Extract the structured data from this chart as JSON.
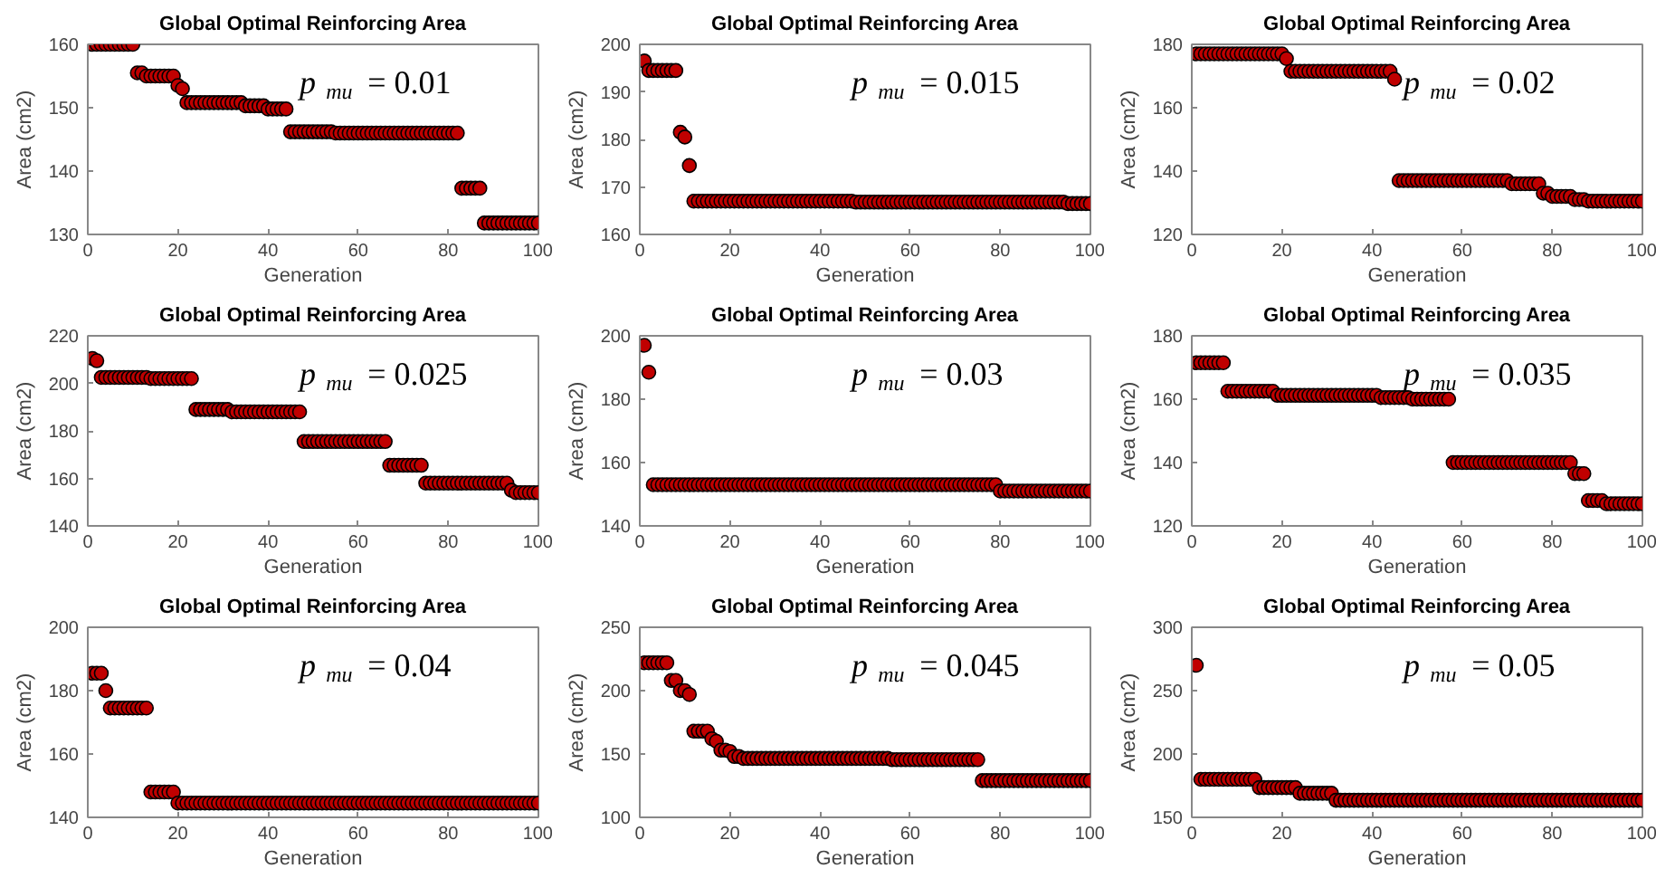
{
  "chart_data": [
    {
      "type": "scatter",
      "title": "Global Optimal Reinforcing Area",
      "xlabel": "Generation",
      "ylabel": "Area (cm2)",
      "annotations": [
        "p$_{mu}$ = 0.01"
      ],
      "marker": "circle",
      "xlim": [
        0,
        100
      ],
      "xticks": [
        0,
        20,
        40,
        60,
        80,
        100
      ],
      "ylim": [
        130,
        160
      ],
      "yticks": [
        130,
        140,
        150,
        160
      ],
      "series": [
        {
          "color": "#c00000",
          "x": [
            1,
            2,
            3,
            4,
            5,
            6,
            7,
            8,
            9,
            10,
            11,
            12,
            13,
            14,
            15,
            16,
            17,
            18,
            19,
            20,
            21,
            22,
            23,
            24,
            25,
            26,
            27,
            28,
            29,
            30,
            31,
            32,
            33,
            34,
            35,
            36,
            37,
            38,
            39,
            40,
            41,
            42,
            43,
            44,
            45,
            46,
            47,
            48,
            49,
            50,
            51,
            52,
            53,
            54,
            55,
            56,
            57,
            58,
            59,
            60,
            61,
            62,
            63,
            64,
            65,
            66,
            67,
            68,
            69,
            70,
            71,
            72,
            73,
            74,
            75,
            76,
            77,
            78,
            79,
            80,
            81,
            82,
            83,
            84,
            85,
            86,
            87,
            88,
            89,
            90,
            91,
            92,
            93,
            94,
            95,
            96,
            97,
            98,
            99,
            100
          ],
          "values": [
            160,
            160,
            160,
            160,
            160,
            160,
            160,
            160,
            160,
            160,
            155.5,
            155.5,
            155,
            155,
            155,
            155,
            155,
            155,
            155,
            153.5,
            153,
            150.8,
            150.8,
            150.8,
            150.8,
            150.8,
            150.8,
            150.8,
            150.8,
            150.8,
            150.8,
            150.8,
            150.8,
            150.8,
            150.3,
            150.3,
            150.3,
            150.3,
            150.3,
            149.8,
            149.8,
            149.8,
            149.8,
            149.8,
            146.2,
            146.2,
            146.2,
            146.2,
            146.2,
            146.2,
            146.2,
            146.2,
            146.2,
            146.2,
            146,
            146,
            146,
            146,
            146,
            146,
            146,
            146,
            146,
            146,
            146,
            146,
            146,
            146,
            146,
            146,
            146,
            146,
            146,
            146,
            146,
            146,
            146,
            146,
            146,
            146,
            146,
            146,
            137.3,
            137.3,
            137.3,
            137.3,
            137.3,
            131.8,
            131.8,
            131.8,
            131.8,
            131.8,
            131.8,
            131.8,
            131.8,
            131.8,
            131.8,
            131.8,
            131.8,
            131.8
          ]
        }
      ]
    },
    {
      "type": "scatter",
      "title": "Global Optimal Reinforcing Area",
      "xlabel": "Generation",
      "ylabel": "Area (cm2)",
      "annotations": [
        "p$_{mu}$ = 0.015"
      ],
      "marker": "circle",
      "xlim": [
        0,
        100
      ],
      "xticks": [
        0,
        20,
        40,
        60,
        80,
        100
      ],
      "ylim": [
        160,
        200
      ],
      "yticks": [
        160,
        170,
        180,
        190,
        200
      ],
      "series": [
        {
          "color": "#c00000",
          "x": [
            1,
            2,
            3,
            4,
            5,
            6,
            7,
            8,
            9,
            10,
            11,
            12,
            13,
            14,
            15,
            16,
            17,
            18,
            19,
            20,
            21,
            22,
            23,
            24,
            25,
            26,
            27,
            28,
            29,
            30,
            31,
            32,
            33,
            34,
            35,
            36,
            37,
            38,
            39,
            40,
            41,
            42,
            43,
            44,
            45,
            46,
            47,
            48,
            49,
            50,
            51,
            52,
            53,
            54,
            55,
            56,
            57,
            58,
            59,
            60,
            61,
            62,
            63,
            64,
            65,
            66,
            67,
            68,
            69,
            70,
            71,
            72,
            73,
            74,
            75,
            76,
            77,
            78,
            79,
            80,
            81,
            82,
            83,
            84,
            85,
            86,
            87,
            88,
            89,
            90,
            91,
            92,
            93,
            94,
            95,
            96,
            97,
            98,
            99,
            100
          ],
          "values": [
            196.5,
            194.5,
            194.5,
            194.5,
            194.5,
            194.5,
            194.5,
            194.5,
            181.5,
            180.5,
            174.5,
            167,
            167,
            167,
            167,
            167,
            167,
            167,
            167,
            167,
            167,
            167,
            167,
            167,
            167,
            167,
            167,
            167,
            167,
            167,
            167,
            167,
            167,
            167,
            167,
            167,
            167,
            167,
            167,
            167,
            167,
            167,
            167,
            167,
            167,
            167,
            167,
            166.8,
            166.8,
            166.8,
            166.8,
            166.8,
            166.8,
            166.8,
            166.8,
            166.8,
            166.8,
            166.8,
            166.8,
            166.8,
            166.8,
            166.8,
            166.8,
            166.8,
            166.8,
            166.8,
            166.8,
            166.8,
            166.8,
            166.8,
            166.8,
            166.8,
            166.8,
            166.8,
            166.8,
            166.8,
            166.8,
            166.8,
            166.8,
            166.8,
            166.8,
            166.8,
            166.8,
            166.8,
            166.8,
            166.8,
            166.8,
            166.8,
            166.8,
            166.8,
            166.8,
            166.8,
            166.8,
            166.8,
            166.5,
            166.5,
            166.5,
            166.5,
            166.5,
            166.5
          ]
        }
      ]
    },
    {
      "type": "scatter",
      "title": "Global Optimal Reinforcing Area",
      "xlabel": "Generation",
      "ylabel": "Area (cm2)",
      "annotations": [
        "p$_{mu}$ = 0.02"
      ],
      "marker": "circle",
      "xlim": [
        0,
        100
      ],
      "xticks": [
        0,
        20,
        40,
        60,
        80,
        100
      ],
      "ylim": [
        120,
        180
      ],
      "yticks": [
        120,
        140,
        160,
        180
      ],
      "series": [
        {
          "color": "#c00000",
          "x": [
            1,
            2,
            3,
            4,
            5,
            6,
            7,
            8,
            9,
            10,
            11,
            12,
            13,
            14,
            15,
            16,
            17,
            18,
            19,
            20,
            21,
            22,
            23,
            24,
            25,
            26,
            27,
            28,
            29,
            30,
            31,
            32,
            33,
            34,
            35,
            36,
            37,
            38,
            39,
            40,
            41,
            42,
            43,
            44,
            45,
            46,
            47,
            48,
            49,
            50,
            51,
            52,
            53,
            54,
            55,
            56,
            57,
            58,
            59,
            60,
            61,
            62,
            63,
            64,
            65,
            66,
            67,
            68,
            69,
            70,
            71,
            72,
            73,
            74,
            75,
            76,
            77,
            78,
            79,
            80,
            81,
            82,
            83,
            84,
            85,
            86,
            87,
            88,
            89,
            90,
            91,
            92,
            93,
            94,
            95,
            96,
            97,
            98,
            99,
            100
          ],
          "values": [
            177,
            177,
            177,
            177,
            177,
            177,
            177,
            177,
            177,
            177,
            177,
            177,
            177,
            177,
            177,
            177,
            177,
            177,
            177,
            177,
            175.5,
            171.5,
            171.5,
            171.5,
            171.5,
            171.5,
            171.5,
            171.5,
            171.5,
            171.5,
            171.5,
            171.5,
            171.5,
            171.5,
            171.5,
            171.5,
            171.5,
            171.5,
            171.5,
            171.5,
            171.5,
            171.5,
            171.5,
            171.5,
            169,
            137,
            137,
            137,
            137,
            137,
            137,
            137,
            137,
            137,
            137,
            137,
            137,
            137,
            137,
            137,
            137,
            137,
            137,
            137,
            137,
            137,
            137,
            137,
            137,
            137,
            136,
            136,
            136,
            136,
            136,
            136,
            136,
            133,
            133,
            132,
            132,
            132,
            132,
            132,
            131,
            131,
            131,
            130.5,
            130.5,
            130.5,
            130.5,
            130.5,
            130.5,
            130.5,
            130.5,
            130.5,
            130.5,
            130.5,
            130.5,
            130.5
          ]
        }
      ]
    },
    {
      "type": "scatter",
      "title": "Global Optimal Reinforcing Area",
      "xlabel": "Generation",
      "ylabel": "Area (cm2)",
      "annotations": [
        "p$_{mu}$ = 0.025"
      ],
      "marker": "circle",
      "xlim": [
        0,
        100
      ],
      "xticks": [
        0,
        20,
        40,
        60,
        80,
        100
      ],
      "ylim": [
        140,
        220
      ],
      "yticks": [
        140,
        160,
        180,
        200,
        220
      ],
      "series": [
        {
          "color": "#c00000",
          "x": [
            1,
            2,
            3,
            4,
            5,
            6,
            7,
            8,
            9,
            10,
            11,
            12,
            13,
            14,
            15,
            16,
            17,
            18,
            19,
            20,
            21,
            22,
            23,
            24,
            25,
            26,
            27,
            28,
            29,
            30,
            31,
            32,
            33,
            34,
            35,
            36,
            37,
            38,
            39,
            40,
            41,
            42,
            43,
            44,
            45,
            46,
            47,
            48,
            49,
            50,
            51,
            52,
            53,
            54,
            55,
            56,
            57,
            58,
            59,
            60,
            61,
            62,
            63,
            64,
            65,
            66,
            67,
            68,
            69,
            70,
            71,
            72,
            73,
            74,
            75,
            76,
            77,
            78,
            79,
            80,
            81,
            82,
            83,
            84,
            85,
            86,
            87,
            88,
            89,
            90,
            91,
            92,
            93,
            94,
            95,
            96,
            97,
            98,
            99,
            100
          ],
          "values": [
            210.5,
            209.5,
            202.5,
            202.5,
            202.5,
            202.5,
            202.5,
            202.5,
            202.5,
            202.5,
            202.5,
            202.5,
            202.5,
            202,
            202,
            202,
            202,
            202,
            202,
            202,
            202,
            202,
            202,
            189,
            189,
            189,
            189,
            189,
            189,
            189,
            189,
            188,
            188,
            188,
            188,
            188,
            188,
            188,
            188,
            188,
            188,
            188,
            188,
            188,
            188,
            188,
            188,
            175.5,
            175.5,
            175.5,
            175.5,
            175.5,
            175.5,
            175.5,
            175.5,
            175.5,
            175.5,
            175.5,
            175.5,
            175.5,
            175.5,
            175.5,
            175.5,
            175.5,
            175.5,
            175.5,
            165.5,
            165.5,
            165.5,
            165.5,
            165.5,
            165.5,
            165.5,
            165.5,
            158,
            158,
            158,
            158,
            158,
            158,
            158,
            158,
            158,
            158,
            158,
            158,
            158,
            158,
            158,
            158,
            158,
            158,
            158,
            155,
            154,
            154,
            154,
            154,
            154,
            154
          ]
        }
      ]
    },
    {
      "type": "scatter",
      "title": "Global Optimal Reinforcing Area",
      "xlabel": "Generation",
      "ylabel": "Area (cm2)",
      "annotations": [
        "p$_{mu}$ = 0.03"
      ],
      "marker": "circle",
      "xlim": [
        0,
        100
      ],
      "xticks": [
        0,
        20,
        40,
        60,
        80,
        100
      ],
      "ylim": [
        140,
        200
      ],
      "yticks": [
        140,
        160,
        180,
        200
      ],
      "series": [
        {
          "color": "#c00000",
          "x": [
            1,
            2,
            3,
            4,
            5,
            6,
            7,
            8,
            9,
            10,
            11,
            12,
            13,
            14,
            15,
            16,
            17,
            18,
            19,
            20,
            21,
            22,
            23,
            24,
            25,
            26,
            27,
            28,
            29,
            30,
            31,
            32,
            33,
            34,
            35,
            36,
            37,
            38,
            39,
            40,
            41,
            42,
            43,
            44,
            45,
            46,
            47,
            48,
            49,
            50,
            51,
            52,
            53,
            54,
            55,
            56,
            57,
            58,
            59,
            60,
            61,
            62,
            63,
            64,
            65,
            66,
            67,
            68,
            69,
            70,
            71,
            72,
            73,
            74,
            75,
            76,
            77,
            78,
            79,
            80,
            81,
            82,
            83,
            84,
            85,
            86,
            87,
            88,
            89,
            90,
            91,
            92,
            93,
            94,
            95,
            96,
            97,
            98,
            99,
            100
          ],
          "values": [
            197,
            188.5,
            153,
            153,
            153,
            153,
            153,
            153,
            153,
            153,
            153,
            153,
            153,
            153,
            153,
            153,
            153,
            153,
            153,
            153,
            153,
            153,
            153,
            153,
            153,
            153,
            153,
            153,
            153,
            153,
            153,
            153,
            153,
            153,
            153,
            153,
            153,
            153,
            153,
            153,
            153,
            153,
            153,
            153,
            153,
            153,
            153,
            153,
            153,
            153,
            153,
            153,
            153,
            153,
            153,
            153,
            153,
            153,
            153,
            153,
            153,
            153,
            153,
            153,
            153,
            153,
            153,
            153,
            153,
            153,
            153,
            153,
            153,
            153,
            153,
            153,
            153,
            153,
            153,
            151,
            151,
            151,
            151,
            151,
            151,
            151,
            151,
            151,
            151,
            151,
            151,
            151,
            151,
            151,
            151,
            151,
            151,
            151,
            151,
            151
          ]
        }
      ]
    },
    {
      "type": "scatter",
      "title": "Global Optimal Reinforcing Area",
      "xlabel": "Generation",
      "ylabel": "Area (cm2)",
      "annotations": [
        "p$_{mu}$ = 0.035"
      ],
      "marker": "circle",
      "xlim": [
        0,
        100
      ],
      "xticks": [
        0,
        20,
        40,
        60,
        80,
        100
      ],
      "ylim": [
        120,
        180
      ],
      "yticks": [
        120,
        140,
        160,
        180
      ],
      "series": [
        {
          "color": "#c00000",
          "x": [
            1,
            2,
            3,
            4,
            5,
            6,
            7,
            8,
            9,
            10,
            11,
            12,
            13,
            14,
            15,
            16,
            17,
            18,
            19,
            20,
            21,
            22,
            23,
            24,
            25,
            26,
            27,
            28,
            29,
            30,
            31,
            32,
            33,
            34,
            35,
            36,
            37,
            38,
            39,
            40,
            41,
            42,
            43,
            44,
            45,
            46,
            47,
            48,
            49,
            50,
            51,
            52,
            53,
            54,
            55,
            56,
            57,
            58,
            59,
            60,
            61,
            62,
            63,
            64,
            65,
            66,
            67,
            68,
            69,
            70,
            71,
            72,
            73,
            74,
            75,
            76,
            77,
            78,
            79,
            80,
            81,
            82,
            83,
            84,
            85,
            86,
            87,
            88,
            89,
            90,
            91,
            92,
            93,
            94,
            95,
            96,
            97,
            98,
            99,
            100
          ],
          "values": [
            171.5,
            171.5,
            171.5,
            171.5,
            171.5,
            171.5,
            171.5,
            162.5,
            162.5,
            162.5,
            162.5,
            162.5,
            162.5,
            162.5,
            162.5,
            162.5,
            162.5,
            162.5,
            161.2,
            161.2,
            161.2,
            161.2,
            161.2,
            161.2,
            161.2,
            161.2,
            161.2,
            161.2,
            161.2,
            161.2,
            161.2,
            161.2,
            161.2,
            161.2,
            161.2,
            161.2,
            161.2,
            161.2,
            161.2,
            161.2,
            161.2,
            160.5,
            160.5,
            160.5,
            160.5,
            160.5,
            160.5,
            160.5,
            160,
            160,
            160,
            160,
            160,
            160,
            160,
            160,
            160,
            140,
            140,
            140,
            140,
            140,
            140,
            140,
            140,
            140,
            140,
            140,
            140,
            140,
            140,
            140,
            140,
            140,
            140,
            140,
            140,
            140,
            140,
            140,
            140,
            140,
            140,
            140,
            136.5,
            136.5,
            136.5,
            128,
            128,
            128,
            128,
            127,
            127,
            127,
            127,
            127,
            127,
            127,
            127,
            127
          ]
        }
      ]
    },
    {
      "type": "scatter",
      "title": "Global Optimal Reinforcing Area",
      "xlabel": "Generation",
      "ylabel": "Area (cm2)",
      "annotations": [
        "p$_{mu}$ = 0.04"
      ],
      "marker": "circle",
      "xlim": [
        0,
        100
      ],
      "xticks": [
        0,
        20,
        40,
        60,
        80,
        100
      ],
      "ylim": [
        140,
        200
      ],
      "yticks": [
        140,
        160,
        180,
        200
      ],
      "series": [
        {
          "color": "#c00000",
          "x": [
            1,
            2,
            3,
            4,
            5,
            6,
            7,
            8,
            9,
            10,
            11,
            12,
            13,
            14,
            15,
            16,
            17,
            18,
            19,
            20,
            21,
            22,
            23,
            24,
            25,
            26,
            27,
            28,
            29,
            30,
            31,
            32,
            33,
            34,
            35,
            36,
            37,
            38,
            39,
            40,
            41,
            42,
            43,
            44,
            45,
            46,
            47,
            48,
            49,
            50,
            51,
            52,
            53,
            54,
            55,
            56,
            57,
            58,
            59,
            60,
            61,
            62,
            63,
            64,
            65,
            66,
            67,
            68,
            69,
            70,
            71,
            72,
            73,
            74,
            75,
            76,
            77,
            78,
            79,
            80,
            81,
            82,
            83,
            84,
            85,
            86,
            87,
            88,
            89,
            90,
            91,
            92,
            93,
            94,
            95,
            96,
            97,
            98,
            99,
            100
          ],
          "values": [
            185.5,
            185.5,
            185.5,
            180,
            174.5,
            174.5,
            174.5,
            174.5,
            174.5,
            174.5,
            174.5,
            174.5,
            174.5,
            148,
            148,
            148,
            148,
            148,
            148,
            144.5,
            144.5,
            144.5,
            144.5,
            144.5,
            144.5,
            144.5,
            144.5,
            144.5,
            144.5,
            144.5,
            144.5,
            144.5,
            144.5,
            144.5,
            144.5,
            144.5,
            144.5,
            144.5,
            144.5,
            144.5,
            144.5,
            144.5,
            144.5,
            144.5,
            144.5,
            144.5,
            144.5,
            144.5,
            144.5,
            144.5,
            144.5,
            144.5,
            144.5,
            144.5,
            144.5,
            144.5,
            144.5,
            144.5,
            144.5,
            144.5,
            144.5,
            144.5,
            144.5,
            144.5,
            144.5,
            144.5,
            144.5,
            144.5,
            144.5,
            144.5,
            144.5,
            144.5,
            144.5,
            144.5,
            144.5,
            144.5,
            144.5,
            144.5,
            144.5,
            144.5,
            144.5,
            144.5,
            144.5,
            144.5,
            144.5,
            144.5,
            144.5,
            144.5,
            144.5,
            144.5,
            144.5,
            144.5,
            144.5,
            144.5,
            144.5,
            144.5,
            144.5,
            144.5,
            144.5,
            144.5
          ]
        }
      ]
    },
    {
      "type": "scatter",
      "title": "Global Optimal Reinforcing Area",
      "xlabel": "Generation",
      "ylabel": "Area (cm2)",
      "annotations": [
        "p$_{mu}$ = 0.045"
      ],
      "marker": "circle",
      "xlim": [
        0,
        100
      ],
      "xticks": [
        0,
        20,
        40,
        60,
        80,
        100
      ],
      "ylim": [
        100,
        250
      ],
      "yticks": [
        100,
        150,
        200,
        250
      ],
      "series": [
        {
          "color": "#c00000",
          "x": [
            1,
            2,
            3,
            4,
            5,
            6,
            7,
            8,
            9,
            10,
            11,
            12,
            13,
            14,
            15,
            16,
            17,
            18,
            19,
            20,
            21,
            22,
            23,
            24,
            25,
            26,
            27,
            28,
            29,
            30,
            31,
            32,
            33,
            34,
            35,
            36,
            37,
            38,
            39,
            40,
            41,
            42,
            43,
            44,
            45,
            46,
            47,
            48,
            49,
            50,
            51,
            52,
            53,
            54,
            55,
            56,
            57,
            58,
            59,
            60,
            61,
            62,
            63,
            64,
            65,
            66,
            67,
            68,
            69,
            70,
            71,
            72,
            73,
            74,
            75,
            76,
            77,
            78,
            79,
            80,
            81,
            82,
            83,
            84,
            85,
            86,
            87,
            88,
            89,
            90,
            91,
            92,
            93,
            94,
            95,
            96,
            97,
            98,
            99,
            100
          ],
          "values": [
            222,
            222,
            222,
            222,
            222,
            222,
            208,
            208,
            200,
            200,
            197,
            168,
            168,
            168,
            168,
            162,
            160,
            153,
            153,
            152,
            148,
            148,
            146.5,
            146.5,
            146.5,
            146.5,
            146.5,
            146.5,
            146.5,
            146.5,
            146.5,
            146.5,
            146.5,
            146.5,
            146.5,
            146.5,
            146.5,
            146.5,
            146.5,
            146.5,
            146.5,
            146.5,
            146.5,
            146.5,
            146.5,
            146.5,
            146.5,
            146.5,
            146.5,
            146.5,
            146.5,
            146.5,
            146.5,
            146.5,
            146.5,
            145.5,
            145.5,
            145.5,
            145.5,
            145.5,
            145.5,
            145.5,
            145.5,
            145.5,
            145.5,
            145.5,
            145.5,
            145.5,
            145.5,
            145.5,
            145.5,
            145.5,
            145.5,
            145.5,
            145.5,
            129,
            129,
            129,
            129,
            129,
            129,
            129,
            129,
            129,
            129,
            129,
            129,
            129,
            129,
            129,
            129,
            129,
            129,
            129,
            129,
            129,
            129,
            129,
            129,
            129
          ]
        }
      ]
    },
    {
      "type": "scatter",
      "title": "Global Optimal Reinforcing Area",
      "xlabel": "Generation",
      "ylabel": "Area (cm2)",
      "annotations": [
        "p$_{mu}$ = 0.05"
      ],
      "marker": "circle",
      "xlim": [
        0,
        100
      ],
      "xticks": [
        0,
        20,
        40,
        60,
        80,
        100
      ],
      "ylim": [
        150,
        300
      ],
      "yticks": [
        150,
        200,
        250,
        300
      ],
      "series": [
        {
          "color": "#c00000",
          "x": [
            1,
            2,
            3,
            4,
            5,
            6,
            7,
            8,
            9,
            10,
            11,
            12,
            13,
            14,
            15,
            16,
            17,
            18,
            19,
            20,
            21,
            22,
            23,
            24,
            25,
            26,
            27,
            28,
            29,
            30,
            31,
            32,
            33,
            34,
            35,
            36,
            37,
            38,
            39,
            40,
            41,
            42,
            43,
            44,
            45,
            46,
            47,
            48,
            49,
            50,
            51,
            52,
            53,
            54,
            55,
            56,
            57,
            58,
            59,
            60,
            61,
            62,
            63,
            64,
            65,
            66,
            67,
            68,
            69,
            70,
            71,
            72,
            73,
            74,
            75,
            76,
            77,
            78,
            79,
            80,
            81,
            82,
            83,
            84,
            85,
            86,
            87,
            88,
            89,
            90,
            91,
            92,
            93,
            94,
            95,
            96,
            97,
            98,
            99,
            100
          ],
          "values": [
            270,
            180,
            180,
            180,
            180,
            180,
            180,
            180,
            180,
            180,
            180,
            180,
            180,
            180,
            173.5,
            173.5,
            173.5,
            173.5,
            173.5,
            173.5,
            173.5,
            173.5,
            173.5,
            169,
            169,
            169,
            169,
            169,
            169,
            169,
            169,
            163.5,
            163.5,
            163.5,
            163.5,
            163.5,
            163.5,
            163.5,
            163.5,
            163.5,
            163.5,
            163.5,
            163.5,
            163.5,
            163.5,
            163.5,
            163.5,
            163.5,
            163.5,
            163.5,
            163.5,
            163.5,
            163.5,
            163.5,
            163.5,
            163.5,
            163.5,
            163.5,
            163.5,
            163.5,
            163.5,
            163.5,
            163.5,
            163.5,
            163.5,
            163.5,
            163.5,
            163.5,
            163.5,
            163.5,
            163.5,
            163.5,
            163.5,
            163.5,
            163.5,
            163.5,
            163.5,
            163.5,
            163.5,
            163.5,
            163.5,
            163.5,
            163.5,
            163.5,
            163.5,
            163.5,
            163.5,
            163.5,
            163.5,
            163.5,
            163.5,
            163.5,
            163.5,
            163.5,
            163.5,
            163.5,
            163.5,
            163.5,
            163.5,
            163.5
          ]
        }
      ]
    }
  ]
}
